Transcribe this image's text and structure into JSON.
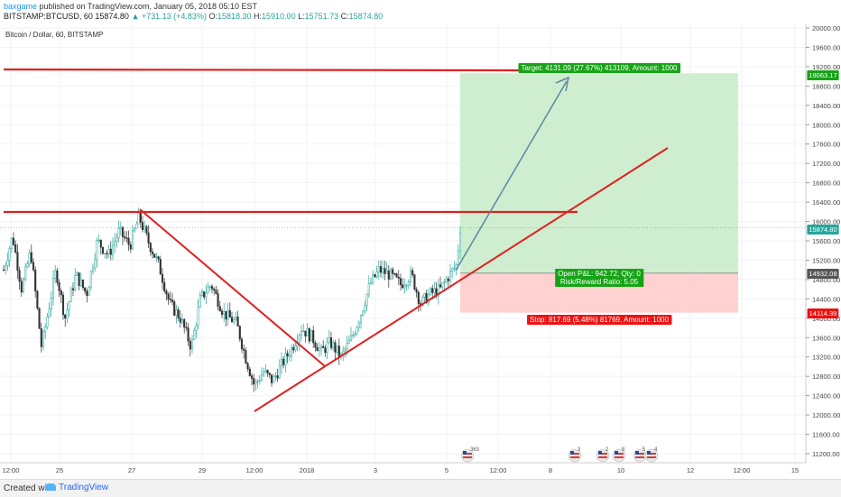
{
  "header": {
    "author": "baxgame",
    "published": "published on TradingView.com, January 05, 2018 05:10 EST",
    "symbol": "BITSTAMP:BTCUSD, 60",
    "last": "15874.80",
    "change": "+731.13 (+4.83%)",
    "o_label": "O:",
    "o": "15818.30",
    "h_label": "H:",
    "h": "15910.00",
    "l_label": "L:",
    "l": "15751.73",
    "c_label": "C:",
    "c": "15874.80"
  },
  "footer": {
    "created_with": "Created with",
    "brand": "TradingView"
  },
  "chart_data": {
    "type": "candlestick",
    "title": "Bitcoin / Dollar, 60, BITSTAMP",
    "ylim": [
      11000,
      20200
    ],
    "y_ticks": [
      "20000.00",
      "19600.00",
      "19200.00",
      "18800.00",
      "18400.00",
      "18000.00",
      "17600.00",
      "17200.00",
      "16800.00",
      "16400.00",
      "16000.00",
      "15600.00",
      "15200.00",
      "14800.00",
      "14400.00",
      "14000.00",
      "13600.00",
      "13200.00",
      "12800.00",
      "12400.00",
      "12000.00",
      "11600.00",
      "11200.00"
    ],
    "x_ticks": [
      "12:00",
      "25",
      "27",
      "29",
      "12:00",
      "2018",
      "3",
      "5",
      "12:00",
      "8",
      "10",
      "12",
      "12:00",
      "15"
    ],
    "price_labels": {
      "target": "19063.17",
      "current": "15874.80",
      "entry": "14932.08",
      "stop": "14114.39"
    },
    "colors": {
      "up": "#26a69a",
      "down": "#333333",
      "trendline": "#e02020",
      "arrow": "#5b87a3",
      "profit_zone": "#c7ebc7",
      "loss_zone": "#ffcccc",
      "target_label": "#17a317",
      "stop_label": "#ee1111",
      "current_label": "#26a69a",
      "entry_label": "#555555"
    },
    "position": {
      "target_text": "Target: 4131.09 (27.67%) 413109, Amount: 1000",
      "pl_text": "Open P&L: 942.72, Qty: 0",
      "rr_text": "Risk/Reward Ratio: 5.05",
      "stop_text": "Stop: 817.69 (5.48%) 81769, Amount: 1000",
      "entry": 14932.08,
      "target": 19063.17,
      "stop": 14114.39
    },
    "events": [
      {
        "icon": "flag-us-icon",
        "count": "363"
      },
      {
        "icon": "flag-us-icon",
        "count": "3"
      },
      {
        "icon": "flag-us-icon",
        "count": "2"
      },
      {
        "icon": "flag-us-icon",
        "count": "8"
      },
      {
        "icon": "flag-us-icon",
        "count": "5"
      },
      {
        "icon": "flag-us-icon",
        "count": "4"
      }
    ]
  }
}
